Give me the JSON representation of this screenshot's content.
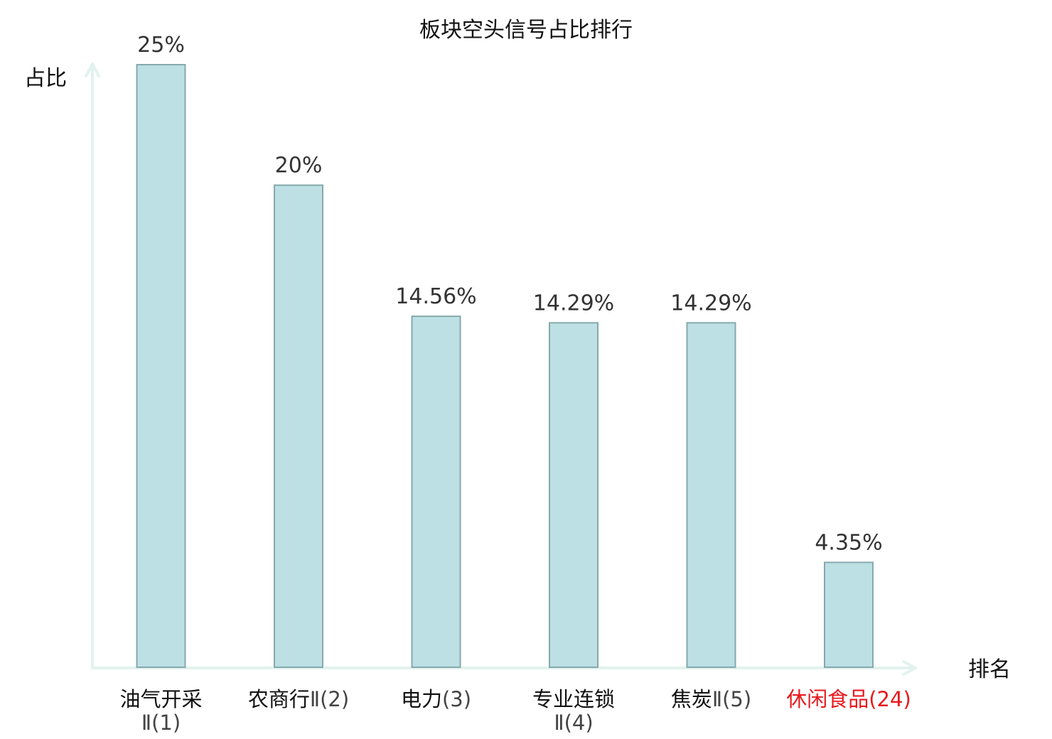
{
  "chart_data": {
    "type": "bar",
    "title": "板块空头信号占比排行",
    "ylabel": "占比",
    "xlabel": "排名",
    "ylim": [
      0,
      26.5
    ],
    "grid": false,
    "legend": "none",
    "categories": [
      {
        "name": "油气开采",
        "rank": "Ⅱ(1)"
      },
      {
        "name": "农商行",
        "rank": "Ⅱ(2)"
      },
      {
        "name": "电力",
        "rank": "(3)"
      },
      {
        "name": "专业连锁",
        "rank": "Ⅱ(4)"
      },
      {
        "name": "焦炭",
        "rank": "Ⅱ(5)"
      },
      {
        "name": "休闲食品",
        "rank": "(24)"
      }
    ],
    "values": [
      25,
      20,
      14.56,
      14.29,
      14.29,
      4.35
    ],
    "value_labels": [
      "25%",
      "20%",
      "14.56%",
      "14.29%",
      "14.29%",
      "4.35%"
    ],
    "highlight_index": 5
  },
  "colors": {
    "bar_fill": "#bce0e3",
    "bar_stroke": "#86a9ac",
    "axis": "#e2f2ef",
    "label": "#111111",
    "rank": "#444444",
    "highlight": "#e8191e"
  }
}
